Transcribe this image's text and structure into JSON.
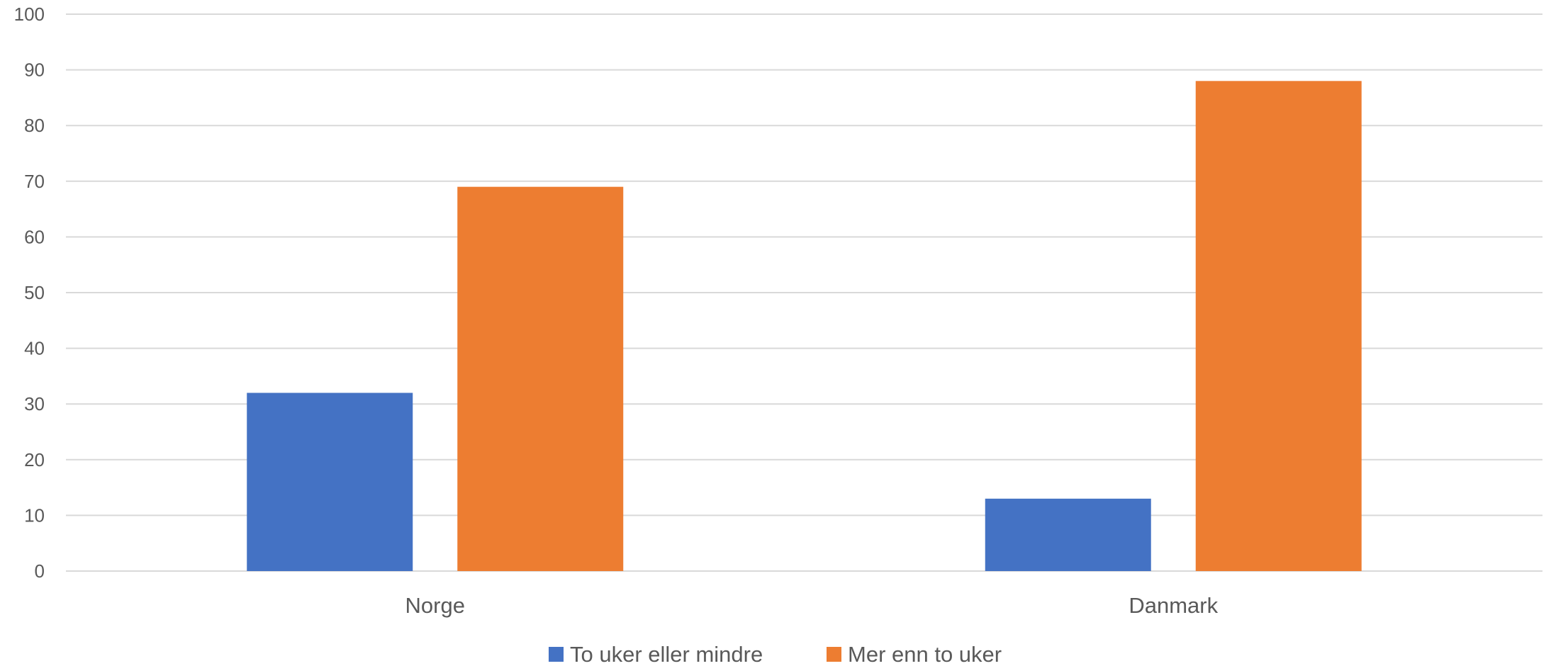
{
  "chart_data": {
    "type": "bar",
    "title": "",
    "xlabel": "",
    "ylabel": "",
    "categories": [
      "Norge",
      "Danmark"
    ],
    "series": [
      {
        "name": "To uker eller mindre",
        "values": [
          32,
          13
        ],
        "color": "#4472C4"
      },
      {
        "name": "Mer enn to uker",
        "values": [
          69,
          88
        ],
        "color": "#ED7D31"
      }
    ],
    "ylim": [
      0,
      100
    ],
    "yticks": [
      "0",
      "10",
      "20",
      "30",
      "40",
      "50",
      "60",
      "70",
      "80",
      "90",
      "100"
    ],
    "grid": true,
    "gridline_color": "#D9D9D9",
    "legend_position": "bottom"
  }
}
